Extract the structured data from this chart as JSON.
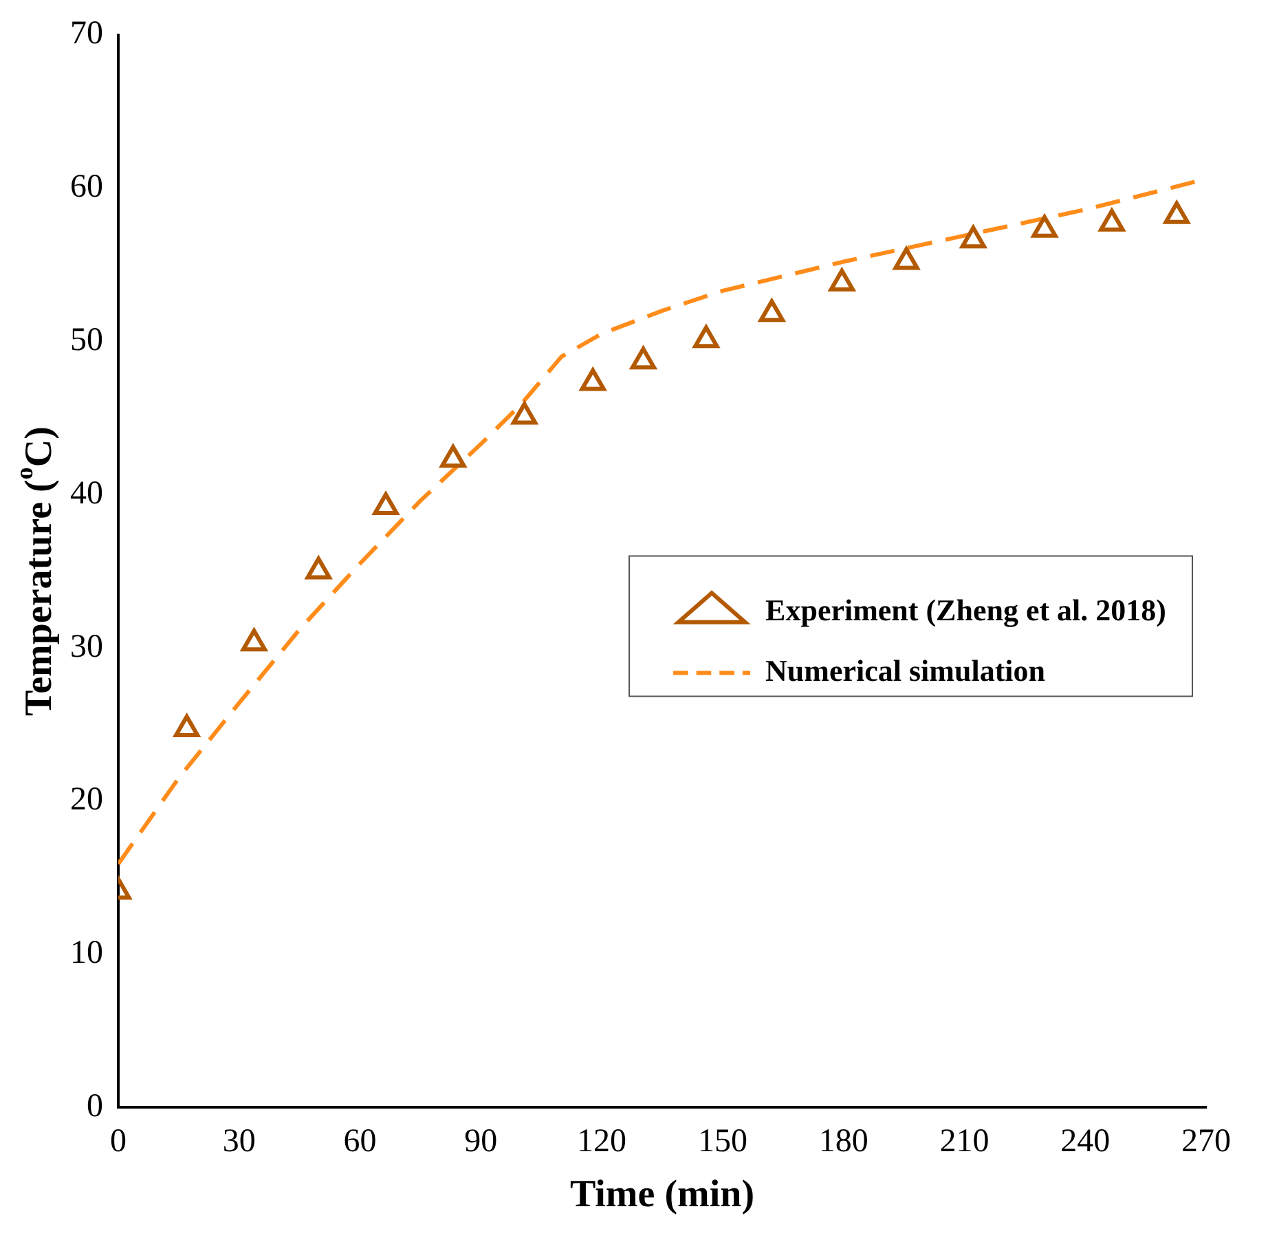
{
  "chart_data": {
    "type": "scatter",
    "xlabel": "Time (min)",
    "ylabel": "Temperature ($^{o}$C)",
    "xlim": [
      0,
      270
    ],
    "ylim": [
      0,
      70
    ],
    "xticks": [
      0,
      30,
      60,
      90,
      120,
      150,
      180,
      210,
      240,
      270
    ],
    "yticks": [
      0,
      10,
      20,
      30,
      40,
      50,
      60,
      70
    ],
    "grid": false,
    "legend": "right",
    "series": [
      {
        "name": "Experiment (Zheng et al. 2018)",
        "type": "scatter",
        "marker": "triangle",
        "color": "#b35900",
        "x": [
          0,
          17,
          33.7,
          49.7,
          66.4,
          83.1,
          100.8,
          117.8,
          130.3,
          145.9,
          162.2,
          179.6,
          195.6,
          212.2,
          229.9,
          246.6,
          262.7
        ],
        "values": [
          14.1,
          24.7,
          30.3,
          35,
          39.2,
          42.3,
          45.1,
          47.3,
          48.7,
          50.1,
          51.8,
          53.8,
          55.2,
          56.6,
          57.3,
          57.7,
          58.2
        ]
      },
      {
        "name": "Numerical simulation",
        "type": "line",
        "line_style": "dashed",
        "marker": "none",
        "color": "#ff8c1a",
        "x": [
          0,
          15,
          30,
          45,
          60,
          75,
          90,
          100,
          110,
          120,
          135,
          150,
          180,
          210,
          240,
          270
        ],
        "values": [
          15.9,
          21.5,
          26.4,
          31.2,
          35.5,
          39.6,
          43.3,
          45.9,
          49,
          50.5,
          52,
          53.3,
          55.2,
          56.9,
          58.6,
          60.6
        ]
      }
    ]
  }
}
